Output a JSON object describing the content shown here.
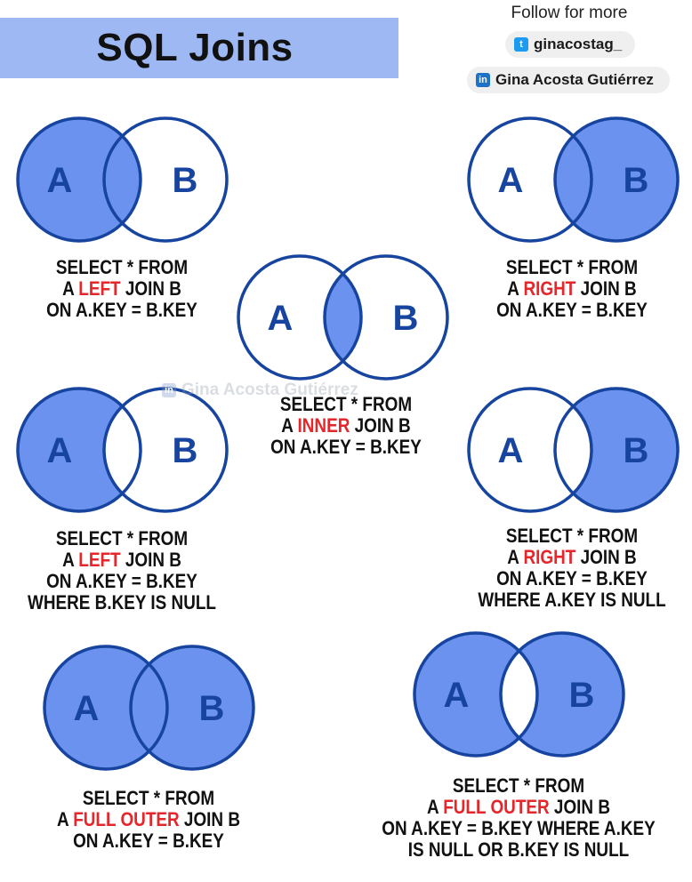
{
  "header": {
    "title": "SQL Joins",
    "follow_text": "Follow for more",
    "twitter_icon": "twitter-icon",
    "twitter_handle": "ginacostag_",
    "linkedin_icon": "linkedin-icon",
    "linkedin_name": "Gina Acosta Gutiérrez"
  },
  "watermark": {
    "text": "Gina Acosta Gutiérrez"
  },
  "colors": {
    "fill": "#6b92ee",
    "outline": "#16449f",
    "letter": "#16449f",
    "keyword": "#e5262b",
    "banner": "#9db8f2"
  },
  "joins": {
    "left": {
      "a": "A",
      "b": "B",
      "shade": "left",
      "l1": "SELECT * FROM",
      "l2a": "A ",
      "kw": "LEFT",
      "l2b": " JOIN B",
      "l3": "ON A.KEY = B.KEY"
    },
    "right": {
      "a": "A",
      "b": "B",
      "shade": "right",
      "l1": "SELECT * FROM",
      "l2a": "A ",
      "kw": "RIGHT",
      "l2b": " JOIN B",
      "l3": "ON A.KEY = B.KEY"
    },
    "inner": {
      "a": "A",
      "b": "B",
      "shade": "inner",
      "l1": "SELECT * FROM",
      "l2a": "A ",
      "kw": "INNER",
      "l2b": " JOIN B",
      "l3": "ON A.KEY = B.KEY"
    },
    "left_excl": {
      "a": "A",
      "b": "B",
      "shade": "left-only",
      "l1": "SELECT * FROM",
      "l2a": "A ",
      "kw": "LEFT",
      "l2b": " JOIN B",
      "l3": "ON A.KEY = B.KEY",
      "l4": "WHERE B.KEY IS NULL"
    },
    "right_excl": {
      "a": "A",
      "b": "B",
      "shade": "right-only",
      "l1": "SELECT * FROM",
      "l2a": "A ",
      "kw": "RIGHT",
      "l2b": " JOIN B",
      "l3": "ON A.KEY = B.KEY",
      "l4": "WHERE A.KEY IS NULL"
    },
    "full": {
      "a": "A",
      "b": "B",
      "shade": "full",
      "l1": "SELECT * FROM",
      "l2a": "A ",
      "kw": "FULL OUTER",
      "l2b": "  JOIN B",
      "l3": "ON A.KEY = B.KEY"
    },
    "full_excl": {
      "a": "A",
      "b": "B",
      "shade": "full-excl",
      "l1": "SELECT * FROM",
      "l2a": "A ",
      "kw": "FULL OUTER",
      "l2b": "  JOIN B",
      "l3": "ON A.KEY = B.KEY WHERE A.KEY",
      "l4": "IS NULL OR B.KEY IS NULL"
    }
  }
}
